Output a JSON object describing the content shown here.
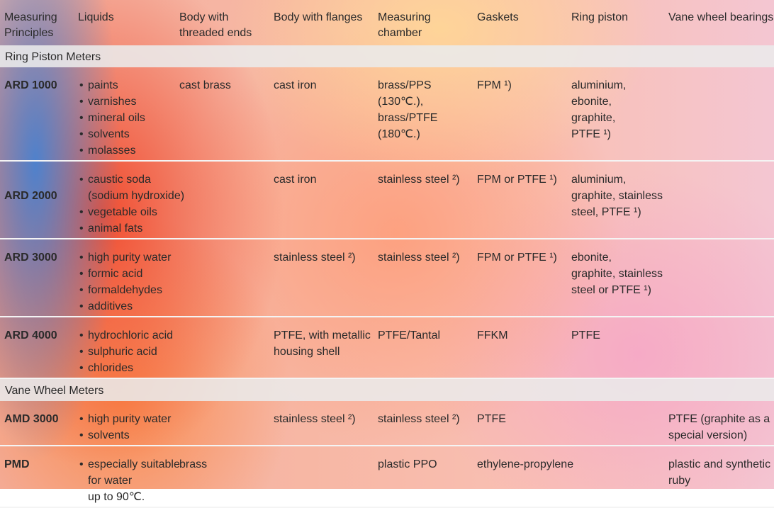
{
  "columns": [
    [
      "Measuring",
      "Principles"
    ],
    [
      "Liquids"
    ],
    [
      "Body with",
      "threaded ends"
    ],
    [
      "Body with flanges"
    ],
    [
      "Measuring",
      "chamber"
    ],
    [
      "Gaskets"
    ],
    [
      "Ring piston"
    ],
    [
      "Vane wheel bearings"
    ]
  ],
  "sections": [
    {
      "title": "Ring Piston Meters",
      "rows": [
        {
          "model": "ARD 1000",
          "liquids": [
            [
              "paints"
            ],
            [
              "varnishes"
            ],
            [
              "mineral oils"
            ],
            [
              "solvents"
            ],
            [
              "molasses"
            ]
          ],
          "threaded": [
            "cast brass"
          ],
          "flanges": [
            "cast iron"
          ],
          "chamber": [
            "brass/PPS",
            "(130℃.),",
            "brass/PTFE",
            "(180℃.)"
          ],
          "gaskets": [
            "FPM ¹)"
          ],
          "piston": [
            "aluminium,",
            "ebonite,",
            "graphite,",
            "PTFE ¹)"
          ],
          "vane": []
        },
        {
          "model": "ARD 2000",
          "liquids": [
            [
              "caustic soda",
              "(sodium hydroxide)"
            ],
            [
              "vegetable oils"
            ],
            [
              "animal fats"
            ]
          ],
          "threaded": [],
          "flanges": [
            "cast iron"
          ],
          "chamber": [
            "stainless steel ²)"
          ],
          "gaskets": [
            "FPM or PTFE ¹)"
          ],
          "piston": [
            "aluminium,",
            "graphite, stainless",
            "steel, PTFE ¹)"
          ],
          "vane": []
        },
        {
          "model": "ARD 3000",
          "liquids": [
            [
              "high purity water"
            ],
            [
              "formic acid"
            ],
            [
              "formaldehydes"
            ],
            [
              "additives"
            ]
          ],
          "threaded": [],
          "flanges": [
            "stainless steel ²)"
          ],
          "chamber": [
            "stainless steel ²)"
          ],
          "gaskets": [
            "FPM or PTFE ¹)"
          ],
          "piston": [
            "ebonite,",
            "graphite, stainless",
            "steel or PTFE ¹)"
          ],
          "vane": []
        },
        {
          "model": "ARD 4000",
          "liquids": [
            [
              "hydrochloric acid"
            ],
            [
              "sulphuric acid"
            ],
            [
              "chlorides"
            ]
          ],
          "threaded": [],
          "flanges": [
            "PTFE, with metallic",
            "housing shell"
          ],
          "chamber": [
            "PTFE/Tantal"
          ],
          "gaskets": [
            "FFKM"
          ],
          "piston": [
            "PTFE"
          ],
          "vane": []
        }
      ]
    },
    {
      "title": "Vane Wheel Meters",
      "rows": [
        {
          "model": "AMD 3000",
          "liquids": [
            [
              "high purity water"
            ],
            [
              "solvents"
            ]
          ],
          "threaded": [],
          "flanges": [
            "stainless steel ²)"
          ],
          "chamber": [
            "stainless steel ²)"
          ],
          "gaskets": [
            "PTFE"
          ],
          "piston": [],
          "vane": [
            "PTFE (graphite as a",
            "special version)"
          ]
        },
        {
          "model": "PMD",
          "liquids": [
            [
              "especially suitable",
              "for water",
              "up to 90℃."
            ]
          ],
          "threaded": [
            "brass"
          ],
          "flanges": [],
          "chamber": [
            "plastic PPO"
          ],
          "gaskets": [
            "ethylene-propylene"
          ],
          "piston": [],
          "vane": [
            "plastic and synthetic",
            "ruby"
          ]
        }
      ]
    }
  ]
}
